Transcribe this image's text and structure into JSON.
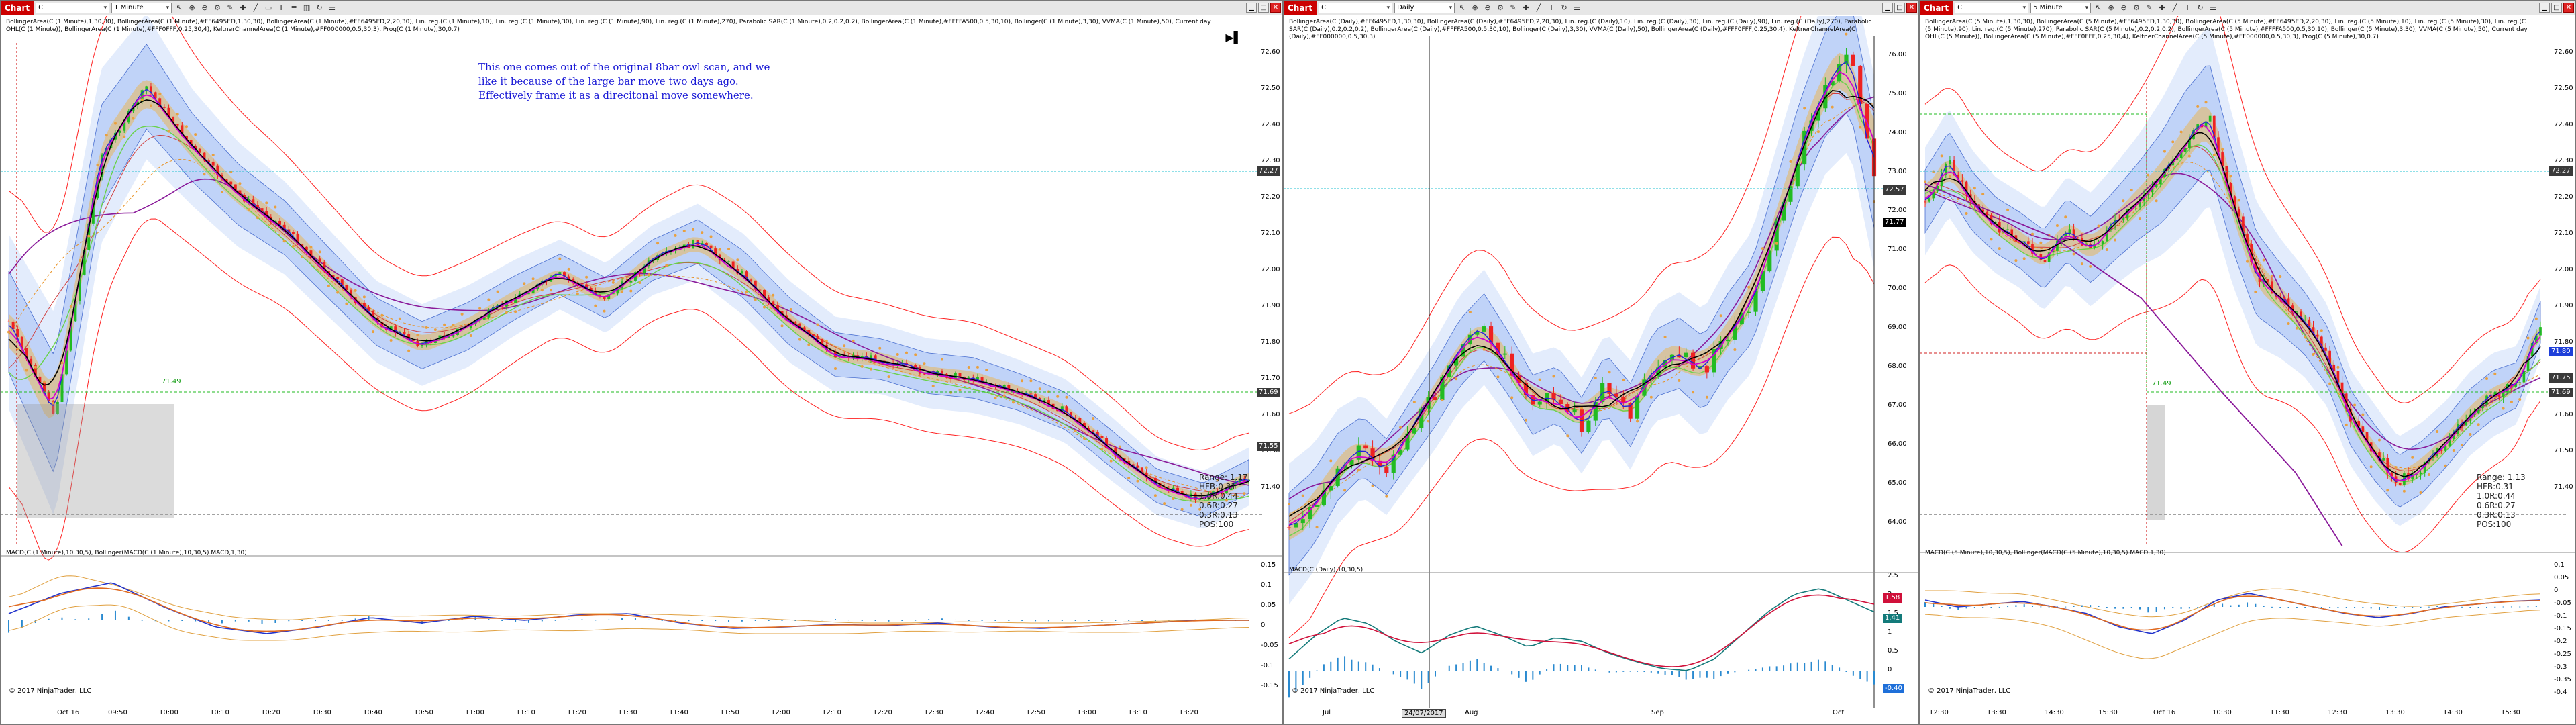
{
  "windows": [
    {
      "id": "w1",
      "title": "Chart",
      "symbol": "C",
      "interval": "1 Minute",
      "indicators_text": "BollingerArea(C (1 Minute),1,30,30), BollingerArea(C (1 Minute),#FF6495ED,1,30,30), BollingerArea(C (1 Minute),#FF6495ED,2,20,30), Lin. reg.(C (1 Minute),10), Lin. reg.(C (1 Minute),30), Lin. reg.(C (1 Minute),90), Lin. reg.(C (1 Minute),270), Parabolic SAR(C (1 Minute),0.2,0.2,0.2), BollingerArea(C (1 Minute),#FFFFA500,0.5,30,10), Bollinger(C (1 Minute),3,30), VVMA(C (1 Minute),50), Current day OHL(C (1 Minute)), BollingerArea(C (1 Minute),#FFF0FFF,0.25,30,4), KeltnerChannelArea(C (1 Minute),#FF000000,0.5,30,3), Prog(C (1 Minute),30,0.7)",
      "note": [
        "This one comes out of the original 8bar owl scan, and we",
        "like it because of the large bar move two days ago.",
        "Effectively frame it as a direcitonal move somewhere."
      ],
      "yticks": [
        "72.60",
        "72.50",
        "72.40",
        "72.30",
        "72.20",
        "72.10",
        "72.00",
        "71.90",
        "71.80",
        "71.70",
        "71.60",
        "71.50",
        "71.40"
      ],
      "xticks": [
        "Oct 16",
        "09:50",
        "10:00",
        "10:10",
        "10:20",
        "10:30",
        "10:40",
        "10:50",
        "11:00",
        "11:10",
        "11:20",
        "11:30",
        "11:40",
        "11:50",
        "12:00",
        "12:10",
        "12:20",
        "12:30",
        "12:40",
        "12:50",
        "13:00",
        "13:10",
        "13:20"
      ],
      "price_tags": [
        {
          "text": "72.27",
          "color": "#3a3a3a"
        },
        {
          "text": "71.69",
          "color": "#3a3a3a"
        },
        {
          "text": "71.55",
          "color": "#3a3a3a"
        }
      ],
      "level_label": "71.49",
      "stats": [
        "Range: 1.17",
        "HFB:0.31",
        "1.0R:0.44",
        "0.6R:0.27",
        "0.3R:0.13",
        "POS:100"
      ],
      "macd_label": "MACD(C (1 Minute),10,30,5), Bollinger(MACD(C (1 Minute),10,30,5).MACD,1,30)",
      "macd_yticks": [
        "0.15",
        "0.1",
        "0.05",
        "0",
        "-0.05",
        "-0.1",
        "-0.15"
      ],
      "copyright": "© 2017 NinjaTrader, LLC"
    },
    {
      "id": "w2",
      "title": "Chart",
      "symbol": "C",
      "interval": "Daily",
      "indicators_text": "BollingerArea(C (Daily),#FF6495ED,1,30,30), BollingerArea(C (Daily),#FF6495ED,2,20,30), Lin. reg.(C (Daily),10), Lin. reg.(C (Daily),30), Lin. reg.(C (Daily),90), Lin. reg.(C (Daily),270), Parabolic SAR(C (Daily),0.2,0.2,0.2), BollingerArea(C (Daily),#FFFFA500,0.5,30,10), Bollinger(C (Daily),3,30), VVMA(C (Daily),50), BollingerArea(C (Daily),#FFF0FFF,0.25,30,4), KeltnerChannelArea(C (Daily),#FF000000,0.5,30,3)",
      "yticks": [
        "76.00",
        "75.00",
        "74.00",
        "73.00",
        "72.00",
        "71.00",
        "70.00",
        "69.00",
        "68.00",
        "67.00",
        "66.00",
        "65.00",
        "64.00"
      ],
      "xticks": [
        "Jul",
        "Aug",
        "Sep",
        "Oct"
      ],
      "date_box": "24/07/2017",
      "price_tags": [
        {
          "text": "72.57",
          "color": "#3a3a3a"
        },
        {
          "text": "71.77",
          "color": "#000000"
        }
      ],
      "macd_label": "MACD(C (Daily),10,30,5)",
      "macd_yticks": [
        "2.5",
        "2",
        "1.5",
        "1",
        "0.5",
        "0",
        "-0.5"
      ],
      "macd_tags": [
        {
          "text": "1.58",
          "color": "#d0103a"
        },
        {
          "text": "1.41",
          "color": "#137a7a"
        },
        {
          "text": "-0.40",
          "color": "#1e6fd9"
        }
      ],
      "copyright": "© 2017 NinjaTrader, LLC"
    },
    {
      "id": "w3",
      "title": "Chart",
      "symbol": "C",
      "interval": "5 Minute",
      "indicators_text": "BollingerArea(C (5 Minute),1,30,30), BollingerArea(C (5 Minute),#FF6495ED,1,30,30), BollingerArea(C (5 Minute),#FF6495ED,2,20,30), Lin. reg.(C (5 Minute),10), Lin. reg.(C (5 Minute),30), Lin. reg.(C (5 Minute),90), Lin. reg.(C (5 Minute),270), Parabolic SAR(C (5 Minute),0.2,0.2,0.2), BollingerArea(C (5 Minute),#FFFFA500,0.5,30,10), Bollinger(C (5 Minute),3,30), VVMA(C (5 Minute),50), Current day OHL(C (5 Minute)), BollingerArea(C (5 Minute),#FFF0FFF,0.25,30,4), KeltnerChannelArea(C (5 Minute),#FF000000,0.5,30,3), Prog(C (5 Minute),30,0.7)",
      "yticks": [
        "72.60",
        "72.50",
        "72.40",
        "72.30",
        "72.20",
        "72.10",
        "72.00",
        "71.90",
        "71.80",
        "71.70",
        "71.60",
        "71.50",
        "71.40"
      ],
      "xticks": [
        "12:30",
        "13:30",
        "14:30",
        "15:30",
        "Oct 16",
        "10:30",
        "11:30",
        "12:30",
        "13:30",
        "14:30",
        "15:30"
      ],
      "price_tags": [
        {
          "text": "72.27",
          "color": "#3a3a3a"
        },
        {
          "text": "71.80",
          "color": "#1e3fd9"
        },
        {
          "text": "71.75",
          "color": "#3a3a3a"
        },
        {
          "text": "71.69",
          "color": "#3a3a3a"
        }
      ],
      "level_label": "71.49",
      "stats": [
        "Range: 1.13",
        "HFB:0.31",
        "1.0R:0.44",
        "0.6R:0.27",
        "0.3R:0.13",
        "POS:100"
      ],
      "macd_label": "MACD(C (5 Minute),10,30,5), Bollinger(MACD(C (5 Minute),10,30,5).MACD,1,30)",
      "macd_yticks": [
        "0.1",
        "0.05",
        "0",
        "-0.05",
        "-0.1",
        "-0.15",
        "-0.2",
        "-0.25",
        "-0.3",
        "-0.35",
        "-0.4"
      ],
      "copyright": "© 2017 NinjaTrader, LLC"
    }
  ],
  "colors": {
    "title_red": "#cc0000",
    "band_blue": "#6495ed",
    "band_orange": "#ffa500",
    "up": "#22bb22",
    "down": "#ee2222",
    "envelope": "#ff2222"
  }
}
